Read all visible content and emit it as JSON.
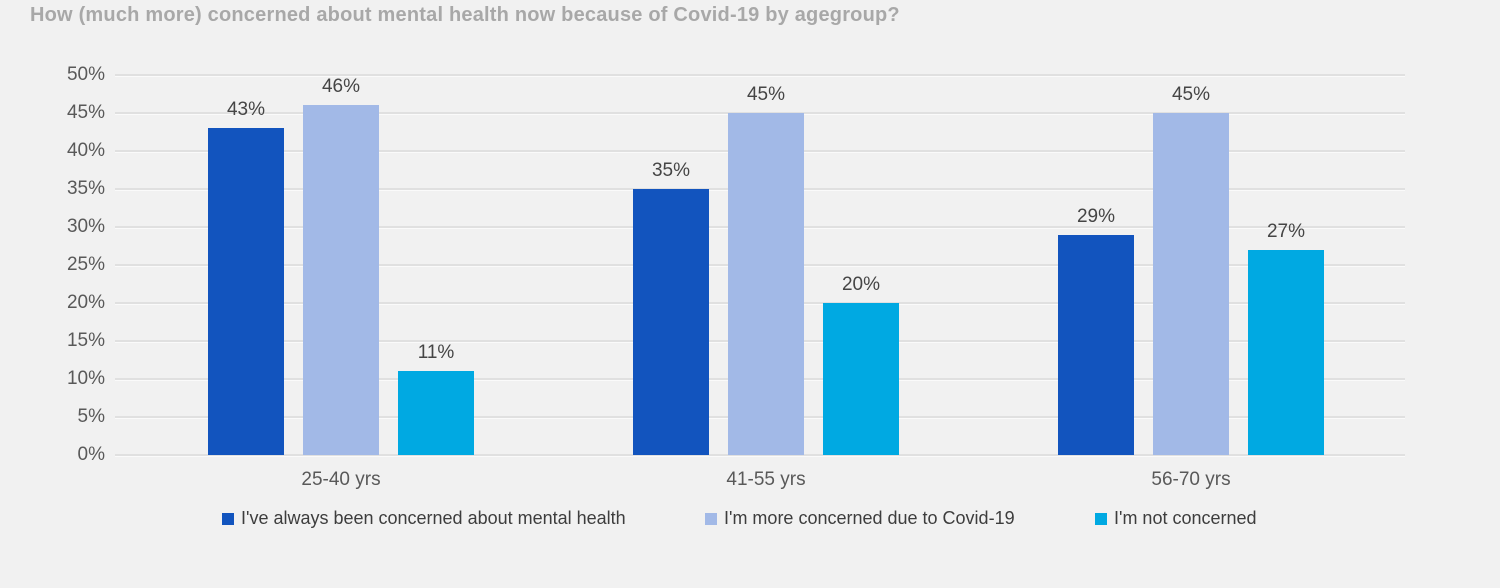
{
  "title": "How (much more) concerned about mental health now because of Covid-19 by agegroup?",
  "style": {
    "background": "#F1F1F1",
    "gridline_color": "#E0E0E0",
    "title_color": "#A8A8A8",
    "tick_label_color": "#595959",
    "value_label_color": "#454545",
    "legend_text_color": "#3D3D3D"
  },
  "chart_data": {
    "type": "bar",
    "title": "How (much more) concerned about mental health now because of Covid-19 by agegroup?",
    "categories": [
      "25-40 yrs",
      "41-55 yrs",
      "56-70 yrs"
    ],
    "series": [
      {
        "name": "I've always been concerned about mental health",
        "color": "#1254BE",
        "values": [
          43,
          35,
          29
        ],
        "labels": [
          "43%",
          "35%",
          "29%"
        ]
      },
      {
        "name": "I'm more concerned due to Covid-19",
        "color": "#A2B9E7",
        "values": [
          46,
          45,
          45
        ],
        "labels": [
          "46%",
          "45%",
          "45%"
        ]
      },
      {
        "name": "I'm not concerned",
        "color": "#00A9E2",
        "values": [
          11,
          20,
          27
        ],
        "labels": [
          "11%",
          "20%",
          "27%"
        ]
      }
    ],
    "value_suffix": "%",
    "xlabel": "",
    "ylabel": "",
    "ylim": [
      0,
      50
    ],
    "ytick_step": 5,
    "ytick_labels": [
      "0%",
      "5%",
      "10%",
      "15%",
      "20%",
      "25%",
      "30%",
      "35%",
      "40%",
      "45%",
      "50%"
    ],
    "grid": true,
    "legend_position": "bottom"
  }
}
